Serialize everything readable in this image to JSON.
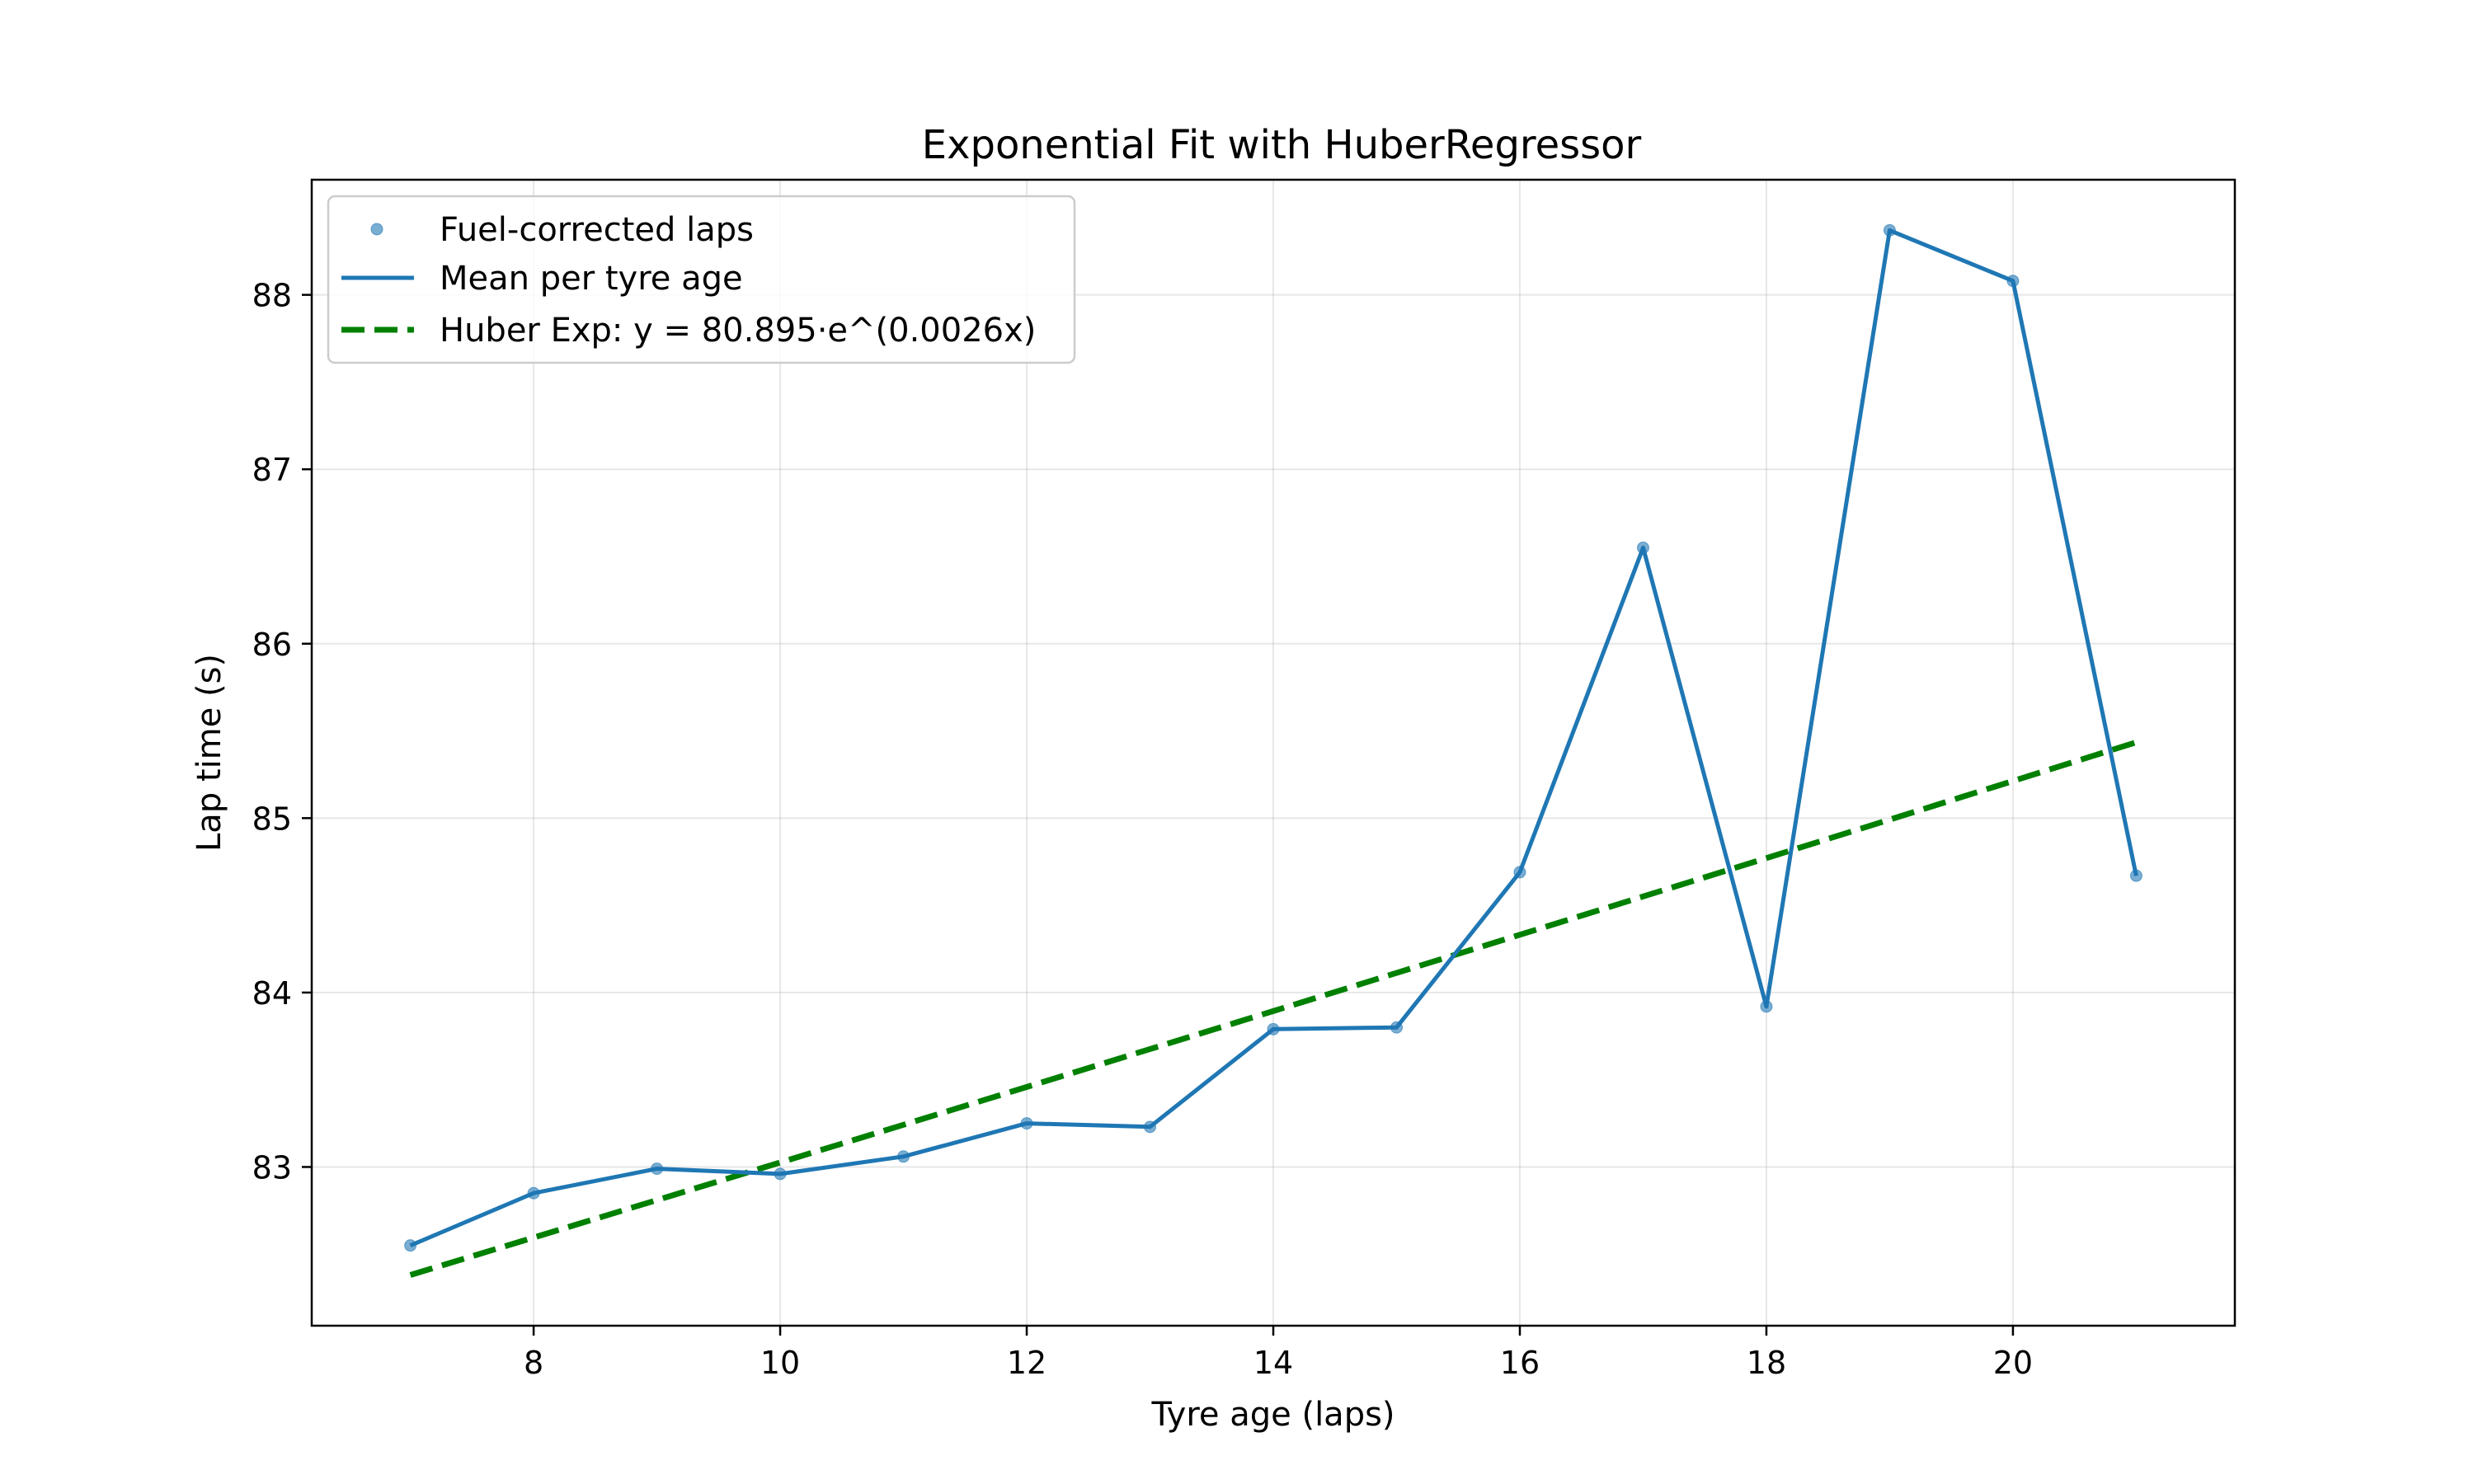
{
  "chart_data": {
    "type": "line",
    "title": "Exponential Fit with HuberRegressor",
    "xlabel": "Tyre age (laps)",
    "ylabel": "Lap time (s)",
    "xlim": [
      6.2,
      21.8
    ],
    "ylim": [
      82.09,
      88.66
    ],
    "xticks": [
      8,
      10,
      12,
      14,
      16,
      18,
      20
    ],
    "yticks": [
      83,
      84,
      85,
      86,
      87,
      88
    ],
    "grid": true,
    "legend_position": "upper left",
    "x": [
      7,
      8,
      9,
      10,
      11,
      12,
      13,
      14,
      15,
      16,
      17,
      18,
      19,
      20,
      21
    ],
    "series": [
      {
        "name": "Fuel-corrected laps",
        "kind": "scatter",
        "color": "#1f77b4",
        "values": [
          82.55,
          82.85,
          82.99,
          82.96,
          83.06,
          83.25,
          83.23,
          83.79,
          83.8,
          84.69,
          86.55,
          83.92,
          88.37,
          88.08,
          84.67
        ]
      },
      {
        "name": "Mean per tyre age",
        "kind": "line",
        "color": "#1f77b4",
        "values": [
          82.55,
          82.85,
          82.99,
          82.96,
          83.06,
          83.25,
          83.23,
          83.79,
          83.8,
          84.69,
          86.55,
          83.92,
          88.37,
          88.08,
          84.67
        ]
      },
      {
        "name": "Huber Exp: y = 80.895·e^(0.0026x)",
        "kind": "dashed-line",
        "color": "#008000",
        "fit": {
          "a": 80.895,
          "b": 0.0026
        }
      }
    ]
  }
}
